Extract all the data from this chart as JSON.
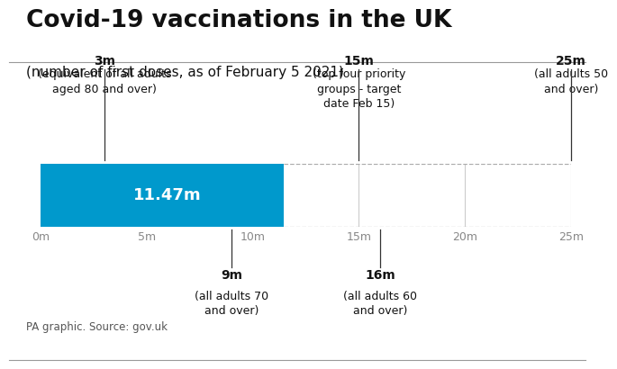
{
  "title": "Covid-19 vaccinations in the UK",
  "subtitle": "(number of first doses, as of February 5 2021)",
  "bar_value": 11.47,
  "bar_color": "#0099cc",
  "bar_label": "11.47m",
  "xlim": [
    0,
    25
  ],
  "xticks": [
    0,
    5,
    10,
    15,
    20,
    25
  ],
  "xtick_labels": [
    "0m",
    "5m",
    "10m",
    "15m",
    "20m",
    "25m"
  ],
  "milestones_above": [
    {
      "x": 3,
      "label": "3m",
      "desc": "(equivalent of all adults\naged 80 and over)"
    },
    {
      "x": 15,
      "label": "15m",
      "desc": "(top four priority\ngroups - target\ndate Feb 15)"
    },
    {
      "x": 25,
      "label": "25m",
      "desc": "(all adults 50\nand over)"
    }
  ],
  "milestones_below": [
    {
      "x": 9,
      "label": "9m",
      "desc": "(all adults 70\nand over)"
    },
    {
      "x": 16,
      "label": "16m",
      "desc": "(all adults 60\nand over)"
    }
  ],
  "source": "PA graphic. Source: gov.uk",
  "bg_color": "#ffffff",
  "text_color": "#111111",
  "line_color": "#cccccc",
  "milestone_line_color": "#333333",
  "dashed_color": "#aaaaaa",
  "title_fontsize": 19,
  "subtitle_fontsize": 11,
  "milestone_label_fontsize": 10,
  "milestone_desc_fontsize": 9,
  "bar_label_fontsize": 13,
  "source_fontsize": 8.5,
  "tick_fontsize": 9
}
